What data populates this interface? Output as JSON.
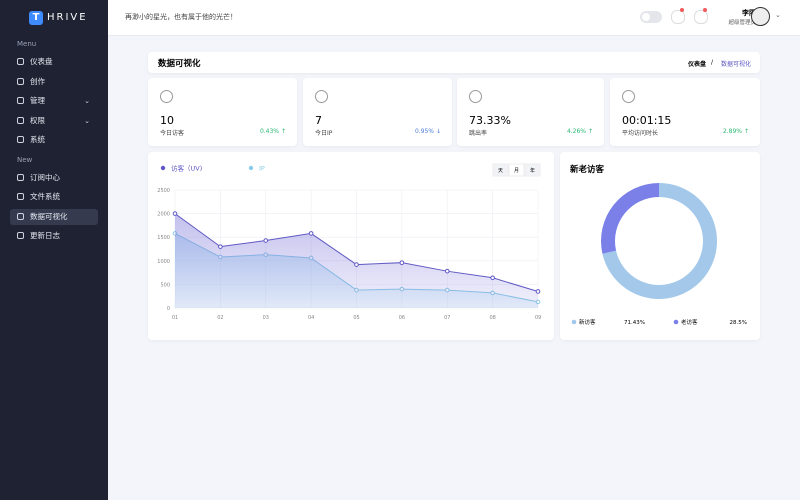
{
  "sidebar": {
    "logo_letter": "T",
    "logo": "HRIVE",
    "sections": [
      {
        "title": "Menu",
        "items": [
          "仪表盘",
          "创作",
          "管理",
          "权限",
          "系统"
        ]
      },
      {
        "title": "New",
        "items": [
          "订阅中心",
          "文件系统",
          "数据可视化",
          "更新日志"
        ]
      }
    ],
    "active_item": "数据可视化"
  },
  "topbar": {
    "slogan": "再渺小的星光，也有属于他的光芒！",
    "user_name": "李阳",
    "user_role": "超级管理员"
  },
  "page_header": {
    "title": "数据可视化",
    "breadcrumb": [
      "仪表盘",
      "数据可视化"
    ],
    "separator": "/"
  },
  "stats": [
    {
      "value": "10",
      "label": "今日访客",
      "change": "0.43%",
      "trend": "↑",
      "color": "#2bb673"
    },
    {
      "value": "7",
      "label": "今日IP",
      "change": "0.95%",
      "trend": "↓",
      "color": "#4a7bd8"
    },
    {
      "value": "73.33%",
      "label": "跳出率",
      "change": "4.26%",
      "trend": "↑",
      "color": "#2bb673"
    },
    {
      "value": "00:01:15",
      "label": "平均访问时长",
      "change": "2.89%",
      "trend": "↑",
      "color": "#2bb673"
    }
  ],
  "line_chart": {
    "type": "line",
    "range_buttons": [
      "天",
      "月",
      "年"
    ],
    "categories": [
      "01",
      "02",
      "03",
      "04",
      "05",
      "06",
      "07",
      "08",
      "09"
    ],
    "series": [
      {
        "name": "访客（UV)",
        "color": "#5f58c4",
        "values": [
          2000,
          1300,
          1430,
          1580,
          920,
          960,
          780,
          640,
          350
        ]
      },
      {
        "name": "IP",
        "color": "#8ccbe6",
        "values": [
          1580,
          1080,
          1130,
          1060,
          380,
          400,
          380,
          320,
          130
        ]
      }
    ],
    "ylim": [
      0,
      2500
    ],
    "yticks": [
      0,
      500,
      1000,
      1500,
      2000,
      2500
    ],
    "grid": true
  },
  "donut_chart": {
    "type": "pie",
    "title": "新老访客",
    "categories": [
      "新访客",
      "老访客"
    ],
    "values": [
      71.43,
      28.5
    ],
    "value_labels": [
      "71.43%",
      "28.5%"
    ],
    "colors": [
      "#a3c8ea",
      "#7b80e8"
    ]
  }
}
